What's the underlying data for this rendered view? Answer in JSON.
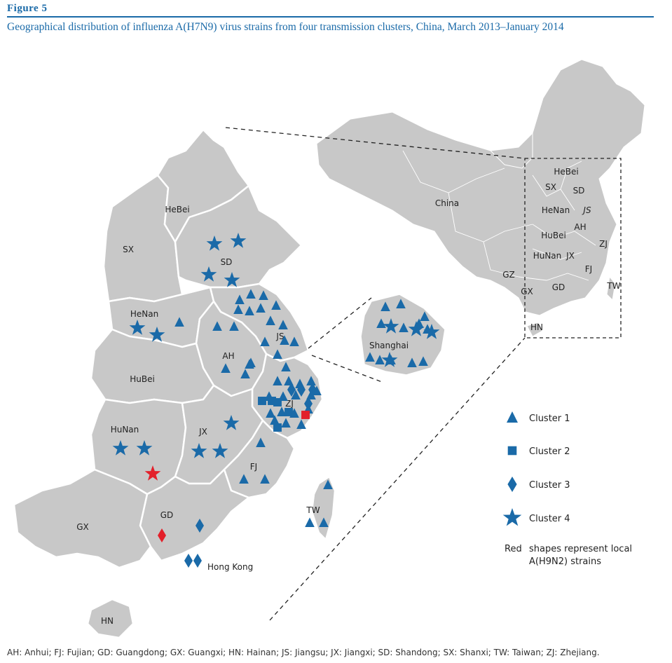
{
  "figure": {
    "label": "Figure 5",
    "title": "Geographical distribution of influenza A(H7N9) virus strains from four transmission clusters, China, March 2013–January 2014"
  },
  "colors": {
    "cluster": "#1a6aa8",
    "local": "#e3202a",
    "land": "#c8c8c8",
    "border": "#ffffff",
    "title": "#1a6aa8"
  },
  "map": {
    "provinces": [
      {
        "id": "sx",
        "label": "SX"
      },
      {
        "id": "hebei",
        "label": "HeBei"
      },
      {
        "id": "sd",
        "label": "SD"
      },
      {
        "id": "henan",
        "label": "HeNan"
      },
      {
        "id": "js",
        "label": "JS"
      },
      {
        "id": "ah",
        "label": "AH"
      },
      {
        "id": "hubei",
        "label": "HuBei"
      },
      {
        "id": "zj",
        "label": "ZJ"
      },
      {
        "id": "hunan",
        "label": "HuNan"
      },
      {
        "id": "jx",
        "label": "JX"
      },
      {
        "id": "fj",
        "label": "FJ"
      },
      {
        "id": "gd",
        "label": "GD"
      },
      {
        "id": "gx",
        "label": "GX"
      },
      {
        "id": "hn",
        "label": "HN"
      },
      {
        "id": "tw",
        "label": "TW"
      }
    ],
    "place_labels": {
      "shanghai": "Shanghai",
      "hong_kong": "Hong Kong"
    },
    "inset": {
      "country_label": "China",
      "labels": [
        "HeBei",
        "SX",
        "SD",
        "HeNan",
        "JS",
        "AH",
        "HuBei",
        "ZJ",
        "HuNan",
        "JX",
        "FJ",
        "GZ",
        "GX",
        "GD",
        "TW",
        "HN"
      ]
    },
    "markers": [
      {
        "cluster": 4,
        "province": "SD",
        "count": 4
      },
      {
        "cluster": 4,
        "province": "HeNan",
        "count": 2
      },
      {
        "cluster": 1,
        "province": "HeNan",
        "count": 1
      },
      {
        "cluster": 1,
        "province": "JS",
        "count": 12
      },
      {
        "cluster": 1,
        "province": "AH",
        "count": 7
      },
      {
        "cluster": 1,
        "province": "ZJ",
        "count": 17
      },
      {
        "cluster": 2,
        "province": "ZJ",
        "count": 5
      },
      {
        "cluster": 3,
        "province": "ZJ",
        "count": 4
      },
      {
        "cluster": 2,
        "province": "ZJ",
        "count": 1,
        "local": true
      },
      {
        "cluster": 4,
        "province": "HuNan",
        "count": 2
      },
      {
        "cluster": 4,
        "province": "HuNan",
        "count": 1,
        "local": true
      },
      {
        "cluster": 4,
        "province": "JX",
        "count": 3
      },
      {
        "cluster": 1,
        "province": "FJ",
        "count": 3
      },
      {
        "cluster": 3,
        "province": "GD",
        "count": 1
      },
      {
        "cluster": 3,
        "province": "GD",
        "count": 1,
        "local": true
      },
      {
        "cluster": 3,
        "province": "Hong Kong",
        "count": 2
      },
      {
        "cluster": 1,
        "province": "TW",
        "count": 3
      },
      {
        "cluster": 1,
        "province": "Shanghai",
        "count": 10
      },
      {
        "cluster": 4,
        "province": "Shanghai",
        "count": 4
      }
    ]
  },
  "legend": {
    "items": [
      {
        "shape": "triangle",
        "label": "Cluster 1"
      },
      {
        "shape": "square",
        "label": "Cluster 2"
      },
      {
        "shape": "diamond",
        "label": "Cluster 3"
      },
      {
        "shape": "star",
        "label": "Cluster 4"
      }
    ],
    "red_word": "Red",
    "red_note_line1": "shapes represent local",
    "red_note_line2": "A(H9N2) strains"
  },
  "footer": "AH: Anhui; FJ: Fujian; GD: Guangdong; GX: Guangxi; HN: Hainan; JS: Jiangsu; JX: Jiangxi; SD: Shandong; SX: Shanxi; TW: Taiwan; ZJ: Zhejiang."
}
